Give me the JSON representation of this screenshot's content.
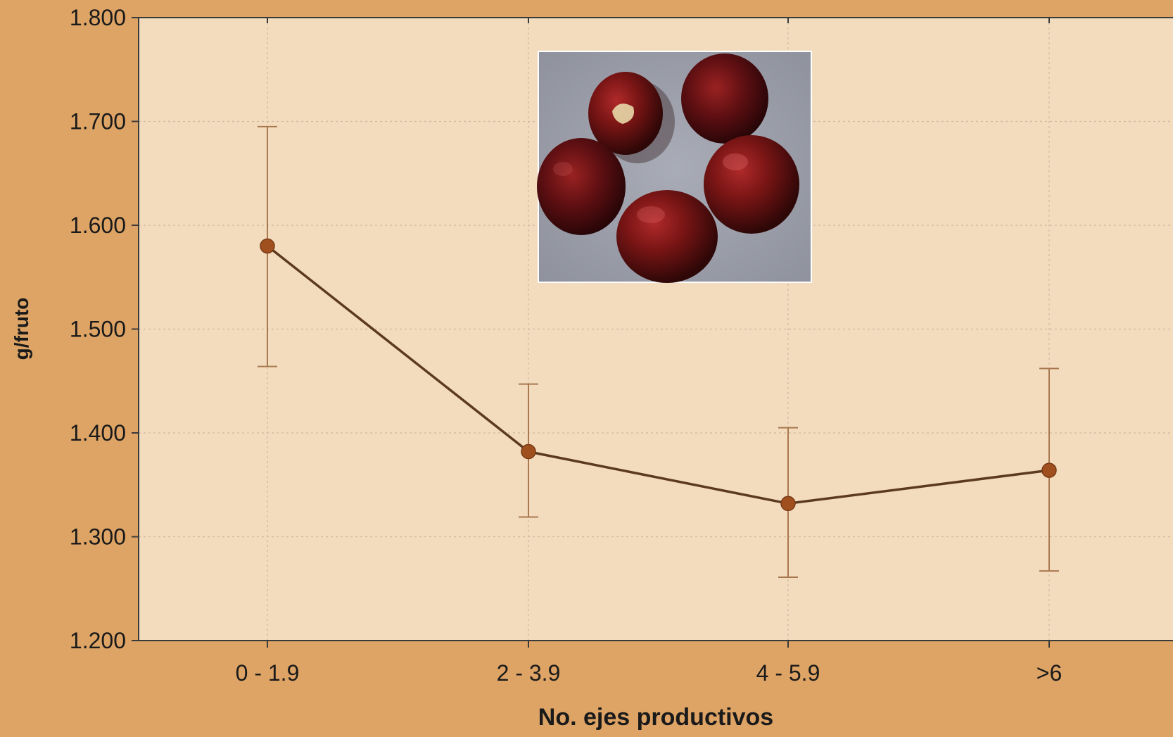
{
  "chart_data": {
    "type": "line",
    "title": "",
    "xlabel": "No. ejes productivos",
    "ylabel": "g/fruto",
    "categories": [
      "0 - 1.9",
      "2 - 3.9",
      "4 - 5.9",
      ">6"
    ],
    "series": [
      {
        "name": "",
        "values": [
          1.58,
          1.382,
          1.332,
          1.364
        ],
        "error_low": [
          1.464,
          1.319,
          1.261,
          1.267
        ],
        "error_high": [
          1.695,
          1.447,
          1.405,
          1.462
        ],
        "color": "#8b4513"
      }
    ],
    "ylim": [
      1.2,
      1.8
    ],
    "yticks": [
      "1.200",
      "1.300",
      "1.400",
      "1.500",
      "1.600",
      "1.700",
      "1.800"
    ],
    "grid": true,
    "colors": {
      "background": "#dea465",
      "plot_area": "#f3dbbd",
      "line": "#5c3a1e",
      "marker": "#a0501f",
      "errorbar": "#a8784f"
    },
    "inset_image": "coffee-cherries-photo"
  }
}
